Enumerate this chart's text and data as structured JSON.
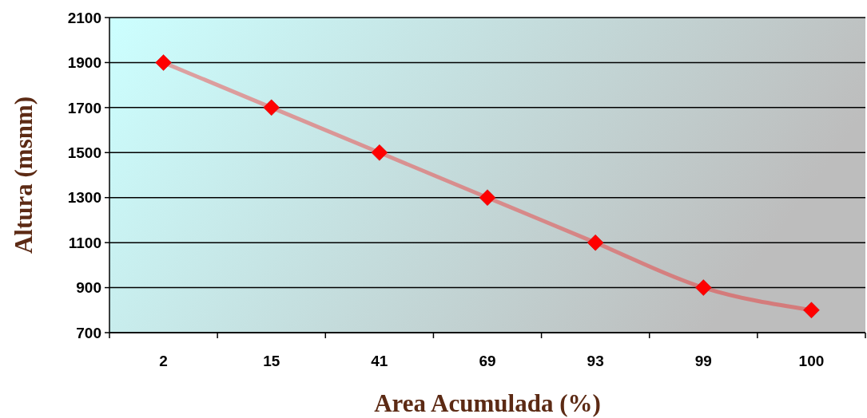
{
  "chart_data": {
    "type": "line",
    "xlabel": "Area Acumulada (%)",
    "ylabel": "Altura (msnm)",
    "categories": [
      "2",
      "15",
      "41",
      "69",
      "93",
      "99",
      "100"
    ],
    "series": [
      {
        "color": "#ff0000",
        "values": [
          1900,
          1700,
          1500,
          1300,
          1100,
          900,
          800
        ]
      }
    ],
    "ylim": [
      700,
      2100
    ],
    "yticks": [
      700,
      900,
      1100,
      1300,
      1500,
      1700,
      1900,
      2100
    ],
    "grid": "y",
    "marker": "diamond",
    "line_style": "solid"
  }
}
